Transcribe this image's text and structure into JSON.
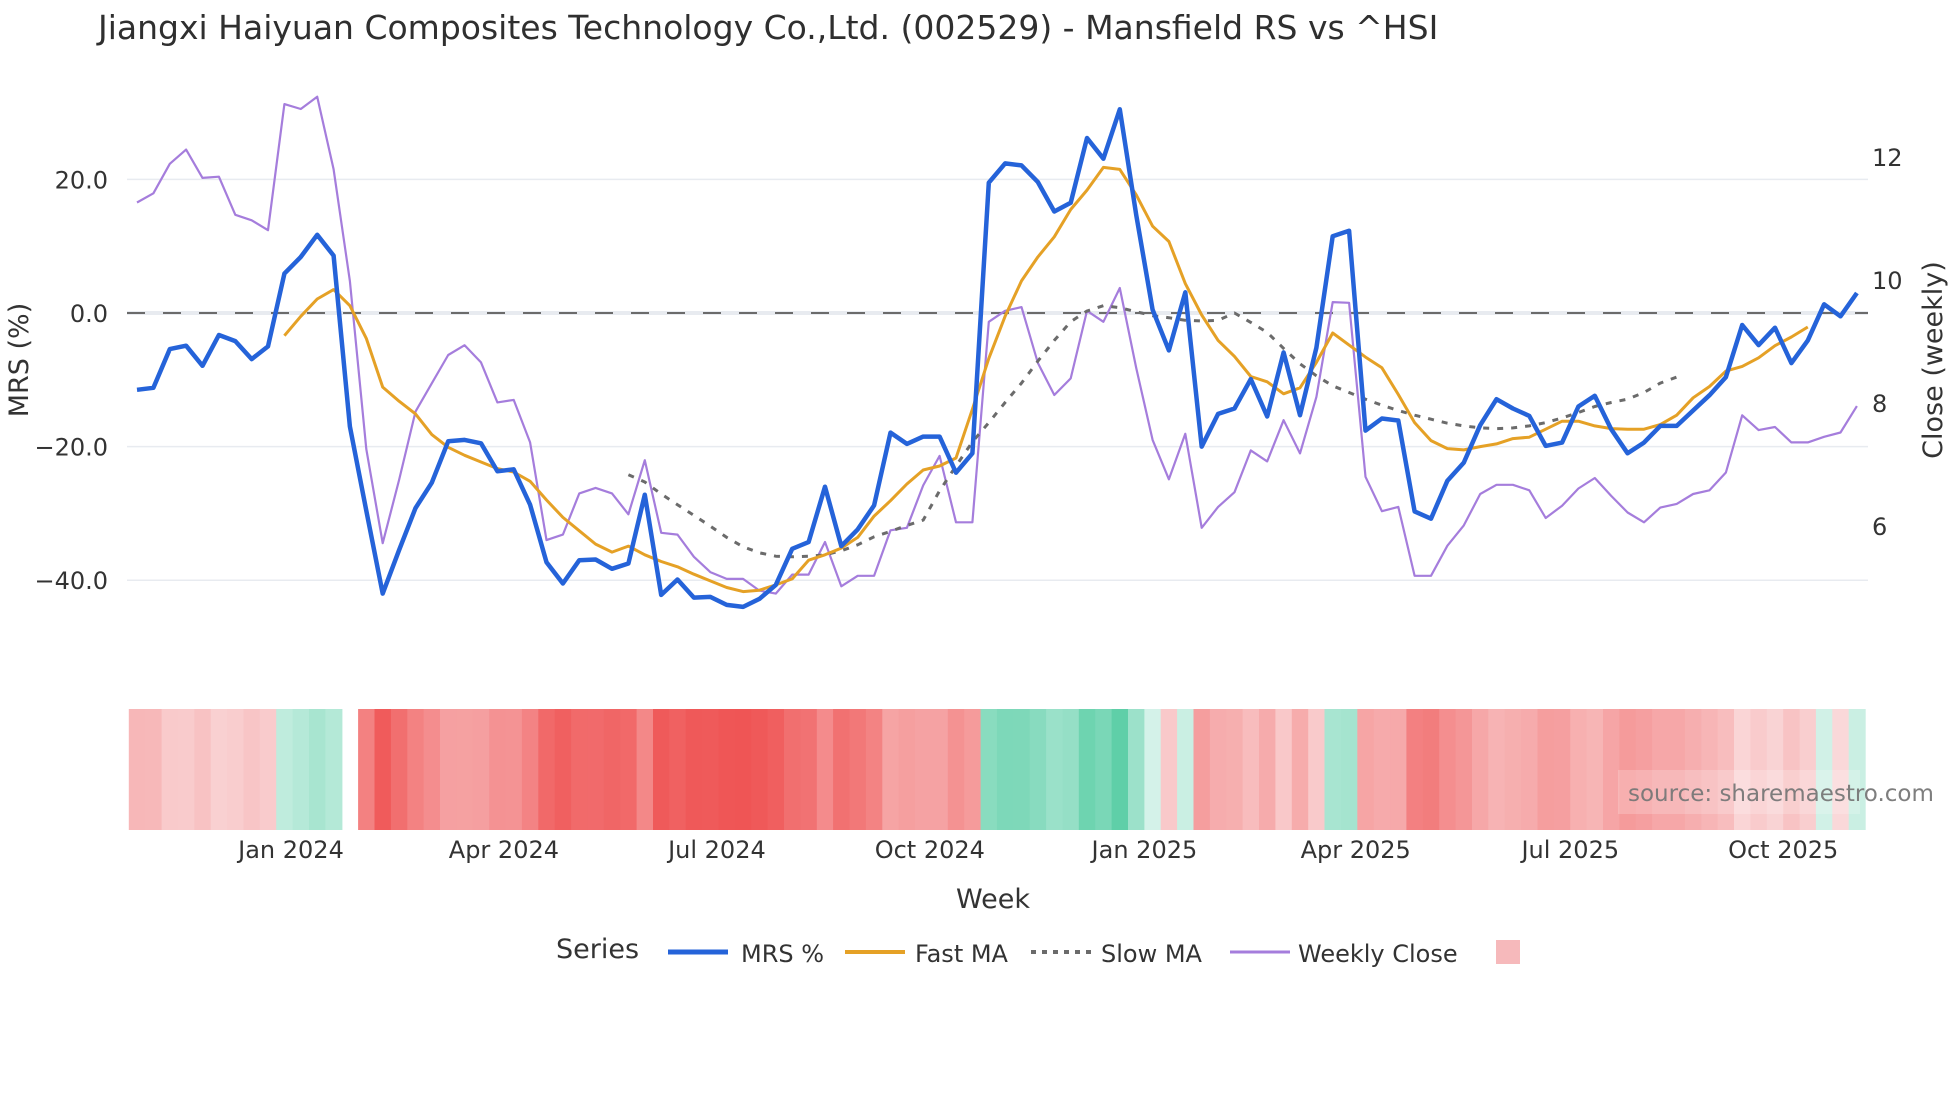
{
  "title": "Jiangxi Haiyuan Composites Technology Co.,Ltd. (002529) - Mansfield RS vs ^HSI",
  "source_label": "source: sharemaestro.com",
  "legend": {
    "title": "Series",
    "items": [
      {
        "label": "MRS %",
        "color": "#2563d9",
        "style": "solid-thick"
      },
      {
        "label": "Fast MA",
        "color": "#e5a126",
        "style": "solid"
      },
      {
        "label": "Slow MA",
        "color": "#6b6b6b",
        "style": "dotted"
      },
      {
        "label": "Weekly Close",
        "color": "#a57ddc",
        "style": "solid-thin"
      },
      {
        "label": "",
        "color": "#f6b9bb",
        "style": "swatch"
      }
    ]
  },
  "colors": {
    "mrs": "#2563d9",
    "fast_ma": "#e5a126",
    "slow_ma": "#6b6b6b",
    "weekly_close": "#a57ddc",
    "zero_line": "#6b6b6b",
    "grid": "#e8ebf0",
    "neg_strong": "#ef5555",
    "neg_light": "#fadadb",
    "pos_strong": "#5fcfa8",
    "pos_light": "#d6f3ea"
  },
  "chart_data": {
    "type": "line",
    "title": "Jiangxi Haiyuan Composites Technology Co.,Ltd. (002529) - Mansfield RS vs ^HSI",
    "xlabel": "Week",
    "ylabel": "MRS (%)",
    "y2label": "Close (weekly)",
    "ylim": [
      -44,
      31
    ],
    "y2lim": [
      4.7,
      13.0
    ],
    "yticks": [
      "20.0",
      "0.0",
      "−20.0",
      "−40.0"
    ],
    "ytick_values": [
      20,
      0,
      -20,
      -40
    ],
    "y2ticks": [
      "12",
      "10",
      "8",
      "6"
    ],
    "y2tick_values": [
      12,
      10,
      8,
      6
    ],
    "xticks": [
      "Jan 2024",
      "Apr 2024",
      "Jul 2024",
      "Oct 2024",
      "Jan 2025",
      "Apr 2025",
      "Jul 2025",
      "Oct 2025"
    ],
    "xtick_index": [
      9.4,
      22.4,
      35.4,
      48.4,
      61.5,
      74.4,
      87.5,
      100.5
    ],
    "grid": true,
    "legend_position": "bottom",
    "zero_line": {
      "y": 0,
      "style": "dashed"
    },
    "n_weeks": 106,
    "series": [
      {
        "name": "MRS %",
        "axis": "left",
        "values": [
          -11.5,
          -11.2,
          -5.4,
          -4.9,
          -7.9,
          -3.3,
          -4.2,
          -6.9,
          -5.0,
          5.9,
          8.4,
          11.7,
          8.6,
          -17.0,
          -29.6,
          -42.0,
          -35.5,
          -29.2,
          -25.4,
          -19.2,
          -19.0,
          -19.5,
          -23.7,
          -23.4,
          -28.7,
          -37.3,
          -40.5,
          -37.0,
          -36.9,
          -38.3,
          -37.5,
          -27.2,
          -42.2,
          -39.9,
          -42.6,
          -42.5,
          -43.7,
          -44.0,
          -42.8,
          -40.7,
          -35.3,
          -34.3,
          -26.0,
          -34.9,
          -32.4,
          -28.8,
          -17.9,
          -19.6,
          -18.5,
          -18.5,
          -23.9,
          -21.0,
          19.5,
          22.4,
          22.1,
          19.6,
          15.2,
          16.5,
          26.2,
          23.1,
          30.5,
          14.7,
          0.5,
          -5.6,
          3.1,
          -20.0,
          -15.1,
          -14.3,
          -9.9,
          -15.5,
          -5.9,
          -15.3,
          -5.2,
          11.5,
          12.3,
          -17.6,
          -15.8,
          -16.1,
          -29.7,
          -30.8,
          -25.1,
          -22.4,
          -16.8,
          -12.9,
          -14.3,
          -15.4,
          -19.9,
          -19.4,
          -14.0,
          -12.4,
          -17.4,
          -21.0,
          -19.4,
          -16.9,
          -16.9,
          -14.6,
          -12.3,
          -9.6,
          -1.8,
          -4.8,
          -2.2,
          -7.5,
          -4.1,
          1.3,
          -0.5,
          3.0
        ]
      },
      {
        "name": "Fast MA",
        "axis": "left",
        "start_index": 9,
        "values": [
          -3.4,
          -0.5,
          2.1,
          3.5,
          1.1,
          -3.8,
          -11.1,
          -13.2,
          -15.1,
          -18.2,
          -20.1,
          -21.3,
          -22.3,
          -23.3,
          -23.8,
          -25.2,
          -28.0,
          -30.6,
          -32.6,
          -34.6,
          -35.8,
          -34.9,
          -36.2,
          -37.2,
          -38.0,
          -39.1,
          -40.1,
          -41.1,
          -41.7,
          -41.5,
          -40.7,
          -39.8,
          -37.0,
          -36.2,
          -35.2,
          -33.6,
          -30.4,
          -28.1,
          -25.6,
          -23.5,
          -22.9,
          -21.7,
          -14.4,
          -6.8,
          -0.5,
          4.8,
          8.4,
          11.4,
          15.5,
          18.4,
          21.8,
          21.5,
          17.7,
          13.0,
          10.7,
          4.4,
          -0.3,
          -4.1,
          -6.5,
          -9.5,
          -10.3,
          -12.1,
          -11.2,
          -7.4,
          -3.0,
          -4.8,
          -6.6,
          -8.2,
          -12.2,
          -16.4,
          -19.1,
          -20.3,
          -20.5,
          -20.0,
          -19.6,
          -18.8,
          -18.6,
          -17.4,
          -16.2,
          -16.2,
          -16.9,
          -17.3,
          -17.4,
          -17.4,
          -16.7,
          -15.3,
          -12.7,
          -11.0,
          -8.7,
          -8.0,
          -6.7,
          -4.9,
          -3.6,
          -2.1
        ]
      },
      {
        "name": "Slow MA",
        "axis": "left",
        "start_index": 30,
        "values": [
          -24.2,
          -25.3,
          -27.1,
          -28.7,
          -30.3,
          -31.9,
          -33.6,
          -35.0,
          -35.9,
          -36.4,
          -36.5,
          -36.4,
          -36.2,
          -35.6,
          -34.7,
          -33.5,
          -32.7,
          -31.8,
          -31.0,
          -26.6,
          -22.9,
          -19.3,
          -16.4,
          -13.4,
          -10.5,
          -7.2,
          -4.1,
          -1.3,
          0.3,
          1.1,
          0.8,
          0.2,
          -0.4,
          -0.7,
          -1.1,
          -1.2,
          -1.1,
          0.0,
          -1.4,
          -2.9,
          -5.3,
          -7.6,
          -9.4,
          -10.9,
          -11.9,
          -12.9,
          -13.8,
          -14.6,
          -15.3,
          -15.9,
          -16.5,
          -16.9,
          -17.2,
          -17.3,
          -17.2,
          -16.9,
          -16.4,
          -15.7,
          -14.9,
          -14.0,
          -13.4,
          -12.9,
          -11.9,
          -10.5,
          -9.6
        ]
      },
      {
        "name": "Weekly Close",
        "axis": "right",
        "values": [
          11.26,
          11.41,
          11.89,
          12.12,
          11.66,
          11.68,
          11.06,
          10.97,
          10.81,
          12.86,
          12.78,
          12.98,
          11.8,
          9.98,
          7.25,
          5.72,
          6.75,
          7.86,
          8.32,
          8.78,
          8.94,
          8.66,
          8.01,
          8.05,
          7.36,
          5.77,
          5.86,
          6.53,
          6.62,
          6.53,
          6.19,
          7.07,
          5.89,
          5.86,
          5.5,
          5.25,
          5.14,
          5.14,
          4.95,
          4.9,
          5.21,
          5.21,
          5.74,
          5.02,
          5.19,
          5.19,
          5.93,
          5.97,
          6.66,
          7.14,
          6.06,
          6.06,
          9.32,
          9.5,
          9.56,
          8.65,
          8.13,
          8.4,
          9.5,
          9.32,
          9.87,
          8.57,
          7.4,
          6.76,
          7.5,
          5.97,
          6.31,
          6.55,
          7.23,
          7.05,
          7.72,
          7.18,
          8.1,
          9.64,
          9.63,
          6.8,
          6.24,
          6.31,
          5.19,
          5.19,
          5.68,
          6.01,
          6.52,
          6.67,
          6.67,
          6.58,
          6.13,
          6.33,
          6.61,
          6.78,
          6.49,
          6.22,
          6.06,
          6.3,
          6.36,
          6.52,
          6.58,
          6.87,
          7.8,
          7.56,
          7.61,
          7.36,
          7.36,
          7.45,
          7.52,
          7.95
        ]
      }
    ],
    "heatmap_strip": {
      "description": "Per-week MRS colour strip (red = negative, green = positive, intensity = magnitude)",
      "gap_after_index": 12,
      "gap_week_index": 13
    }
  }
}
